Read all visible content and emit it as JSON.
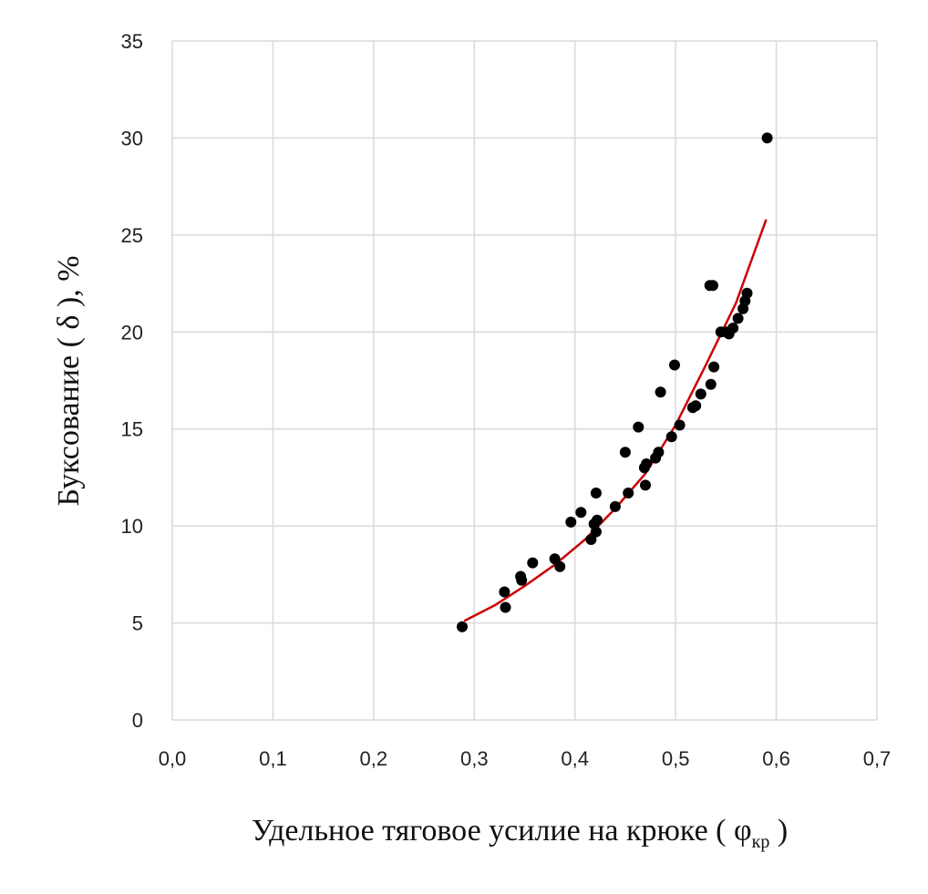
{
  "chart_data": {
    "type": "scatter",
    "title": "",
    "xlabel": "Удельное тяговое усилие на крюке",
    "xlabel_symbol": "φ",
    "xlabel_subscript": "кр",
    "ylabel": "Буксование ( δ ), %",
    "xlim": [
      0,
      0.7
    ],
    "ylim": [
      0,
      35
    ],
    "x_ticks": [
      "0,0",
      "0,1",
      "0,2",
      "0,3",
      "0,4",
      "0,5",
      "0,6",
      "0,7"
    ],
    "y_ticks": [
      "0",
      "5",
      "10",
      "15",
      "20",
      "25",
      "30",
      "35"
    ],
    "grid": true,
    "legend": "none",
    "colors": {
      "points": "#000000",
      "trend": "#cc0000",
      "grid": "#d9d9d9"
    },
    "series": [
      {
        "type": "scatter",
        "points": [
          [
            0.288,
            4.8
          ],
          [
            0.33,
            6.6
          ],
          [
            0.331,
            5.8
          ],
          [
            0.346,
            7.4
          ],
          [
            0.347,
            7.2
          ],
          [
            0.358,
            8.1
          ],
          [
            0.38,
            8.3
          ],
          [
            0.385,
            7.9
          ],
          [
            0.396,
            10.2
          ],
          [
            0.406,
            10.7
          ],
          [
            0.416,
            9.3
          ],
          [
            0.419,
            10.1
          ],
          [
            0.421,
            9.7
          ],
          [
            0.421,
            11.7
          ],
          [
            0.422,
            10.3
          ],
          [
            0.44,
            11.0
          ],
          [
            0.45,
            13.8
          ],
          [
            0.453,
            11.7
          ],
          [
            0.463,
            15.1
          ],
          [
            0.469,
            13.0
          ],
          [
            0.47,
            12.1
          ],
          [
            0.471,
            13.2
          ],
          [
            0.48,
            13.5
          ],
          [
            0.483,
            13.8
          ],
          [
            0.485,
            16.9
          ],
          [
            0.496,
            14.6
          ],
          [
            0.499,
            18.3
          ],
          [
            0.504,
            15.2
          ],
          [
            0.517,
            16.1
          ],
          [
            0.52,
            16.2
          ],
          [
            0.525,
            16.8
          ],
          [
            0.534,
            22.4
          ],
          [
            0.535,
            17.3
          ],
          [
            0.537,
            22.4
          ],
          [
            0.538,
            18.2
          ],
          [
            0.545,
            20.0
          ],
          [
            0.55,
            20.0
          ],
          [
            0.553,
            19.9
          ],
          [
            0.557,
            20.2
          ],
          [
            0.562,
            20.7
          ],
          [
            0.567,
            21.2
          ],
          [
            0.569,
            21.6
          ],
          [
            0.571,
            22.0
          ],
          [
            0.591,
            30.0
          ]
        ]
      },
      {
        "type": "line",
        "trend": "exponential",
        "x": [
          0.29,
          0.32,
          0.35,
          0.38,
          0.41,
          0.44,
          0.47,
          0.5,
          0.53,
          0.56,
          0.59
        ],
        "values": [
          5.1,
          5.9,
          6.9,
          8.0,
          9.3,
          10.9,
          12.7,
          15.2,
          18.3,
          21.5,
          25.8
        ]
      }
    ]
  }
}
